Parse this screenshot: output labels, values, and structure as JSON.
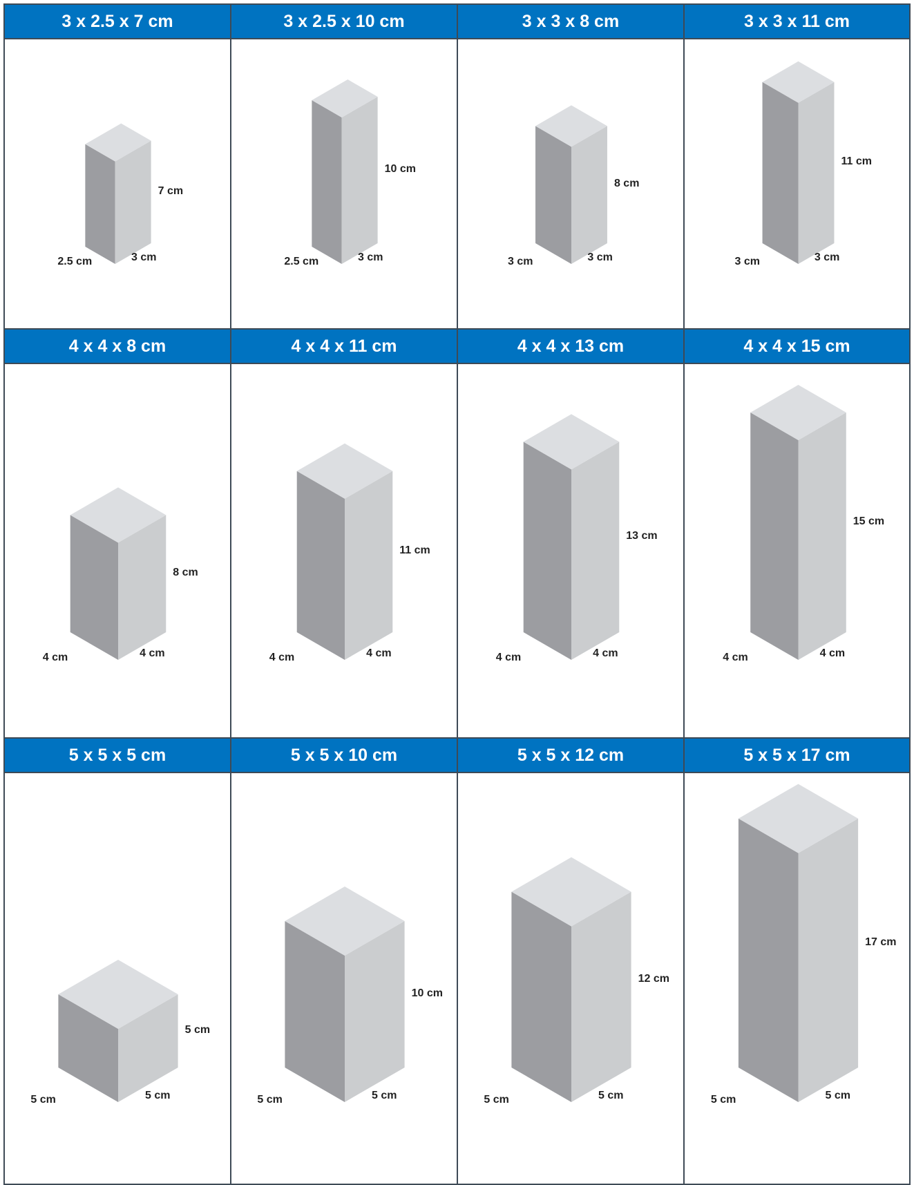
{
  "colors": {
    "header_bg": "#0073c1",
    "header_text": "#ffffff",
    "top_face": "#dcdee1",
    "left_face": "#9c9da1",
    "right_face": "#cbcdcf",
    "border": "#3e4a56"
  },
  "rows": [
    {
      "items": [
        {
          "title": "3 x 2.5 x 7 cm",
          "width": 3,
          "depth": 2.5,
          "height": 7,
          "width_label": "3 cm",
          "depth_label": "2.5 cm",
          "height_label": "7 cm"
        },
        {
          "title": "3 x 2.5 x 10 cm",
          "width": 3,
          "depth": 2.5,
          "height": 10,
          "width_label": "3 cm",
          "depth_label": "2.5 cm",
          "height_label": "10 cm"
        },
        {
          "title": "3 x 3 x 8 cm",
          "width": 3,
          "depth": 3,
          "height": 8,
          "width_label": "3 cm",
          "depth_label": "3 cm",
          "height_label": "8 cm"
        },
        {
          "title": "3 x 3 x 11 cm",
          "width": 3,
          "depth": 3,
          "height": 11,
          "width_label": "3 cm",
          "depth_label": "3 cm",
          "height_label": "11 cm"
        }
      ]
    },
    {
      "items": [
        {
          "title": "4 x 4 x 8 cm",
          "width": 4,
          "depth": 4,
          "height": 8,
          "width_label": "4 cm",
          "depth_label": "4 cm",
          "height_label": "8 cm"
        },
        {
          "title": "4 x 4 x 11 cm",
          "width": 4,
          "depth": 4,
          "height": 11,
          "width_label": "4 cm",
          "depth_label": "4 cm",
          "height_label": "11 cm"
        },
        {
          "title": "4 x 4 x 13 cm",
          "width": 4,
          "depth": 4,
          "height": 13,
          "width_label": "4 cm",
          "depth_label": "4 cm",
          "height_label": "13 cm"
        },
        {
          "title": "4 x 4 x 15 cm",
          "width": 4,
          "depth": 4,
          "height": 15,
          "width_label": "4 cm",
          "depth_label": "4 cm",
          "height_label": "15 cm"
        }
      ]
    },
    {
      "items": [
        {
          "title": "5 x 5 x 5 cm",
          "width": 5,
          "depth": 5,
          "height": 5,
          "width_label": "5 cm",
          "depth_label": "5 cm",
          "height_label": "5 cm"
        },
        {
          "title": "5 x 5 x 10 cm",
          "width": 5,
          "depth": 5,
          "height": 10,
          "width_label": "5 cm",
          "depth_label": "5 cm",
          "height_label": "10 cm"
        },
        {
          "title": "5 x 5 x 12 cm",
          "width": 5,
          "depth": 5,
          "height": 12,
          "width_label": "5 cm",
          "depth_label": "5 cm",
          "height_label": "12 cm"
        },
        {
          "title": "5 x 5 x 17 cm",
          "width": 5,
          "depth": 5,
          "height": 17,
          "width_label": "5 cm",
          "depth_label": "5 cm",
          "height_label": "17 cm"
        }
      ]
    }
  ]
}
